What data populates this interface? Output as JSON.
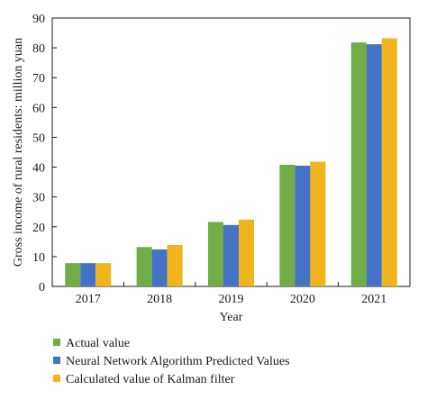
{
  "chart_data": {
    "type": "bar",
    "title": "",
    "xlabel": "Year",
    "ylabel": "Gross income of rural residents: million yuan",
    "categories": [
      "2017",
      "2018",
      "2019",
      "2020",
      "2021"
    ],
    "ylim": [
      0,
      90
    ],
    "yticks": [
      0,
      10,
      20,
      30,
      40,
      50,
      60,
      70,
      80,
      90
    ],
    "grid": false,
    "legend_position": "bottom-left",
    "series": [
      {
        "name": "Actual value",
        "color": "#70ad47",
        "values": [
          7.8,
          13.2,
          21.6,
          40.8,
          81.8
        ]
      },
      {
        "name": "Neural Network Algorithm Predicted Values",
        "color": "#4472c4",
        "values": [
          7.8,
          12.4,
          20.6,
          40.5,
          81.2
        ]
      },
      {
        "name": "Calculated value of Kalman filter",
        "color": "#f0b41c",
        "values": [
          7.8,
          13.9,
          22.4,
          41.8,
          83.2
        ]
      }
    ]
  }
}
